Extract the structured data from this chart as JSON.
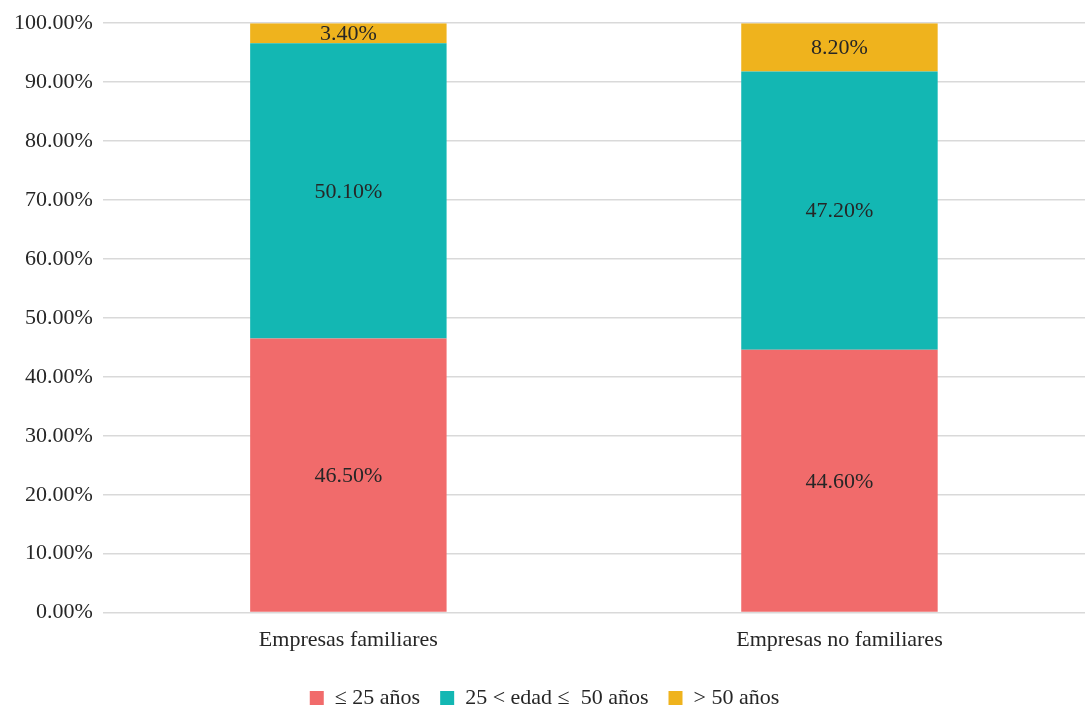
{
  "chart_data": {
    "type": "bar",
    "stacked": true,
    "categories": [
      "Empresas familiares",
      "Empresas no familiares"
    ],
    "series": [
      {
        "name": "≤ 25 años",
        "color": "#f16b6b",
        "values": [
          46.5,
          44.6
        ],
        "value_labels": [
          "46.50%",
          "44.60%"
        ]
      },
      {
        "name": "25 < edad ≤  50 años",
        "color": "#13b7b3",
        "values": [
          50.1,
          47.2
        ],
        "value_labels": [
          "50.10%",
          "47.20%"
        ]
      },
      {
        "name": "> 50 años",
        "color": "#efb31d",
        "values": [
          3.4,
          8.2
        ],
        "value_labels": [
          "3.40%",
          "8.20%"
        ]
      }
    ],
    "ylim": [
      0,
      100
    ],
    "yticks": [
      {
        "value": 0,
        "label": "0.00%"
      },
      {
        "value": 10,
        "label": "10.00%"
      },
      {
        "value": 20,
        "label": "20.00%"
      },
      {
        "value": 30,
        "label": "30.00%"
      },
      {
        "value": 40,
        "label": "40.00%"
      },
      {
        "value": 50,
        "label": "50.00%"
      },
      {
        "value": 60,
        "label": "60.00%"
      },
      {
        "value": 70,
        "label": "70.00%"
      },
      {
        "value": 80,
        "label": "80.00%"
      },
      {
        "value": 90,
        "label": "90.00%"
      },
      {
        "value": 100,
        "label": "100.00%"
      }
    ],
    "grid": "y",
    "legend": "bottom"
  }
}
